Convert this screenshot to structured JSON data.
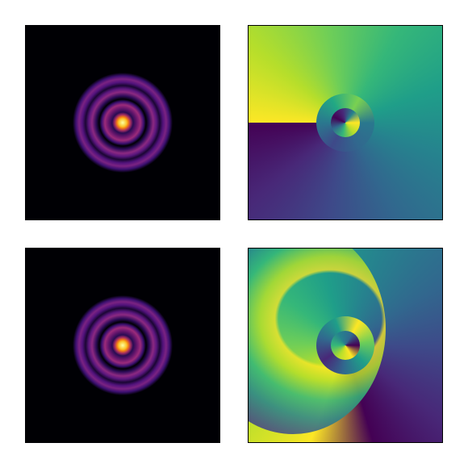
{
  "chart_data": [
    {
      "type": "image"
    },
    {
      "type": "image"
    },
    {
      "type": "image"
    },
    {
      "type": "image"
    }
  ]
}
